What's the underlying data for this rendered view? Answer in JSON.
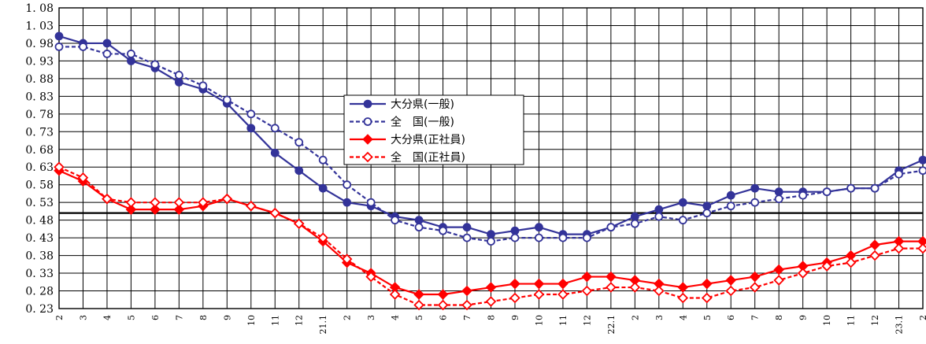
{
  "chart_data": {
    "type": "line",
    "categories": [
      "2",
      "3",
      "4",
      "5",
      "6",
      "7",
      "8",
      "9",
      "10",
      "11",
      "12",
      "21.1",
      "2",
      "3",
      "4",
      "5",
      "6",
      "7",
      "8",
      "9",
      "10",
      "11",
      "12",
      "22.1",
      "2",
      "3",
      "4",
      "5",
      "6",
      "7",
      "8",
      "9",
      "10",
      "11",
      "12",
      "23.1",
      "2"
    ],
    "series": [
      {
        "name": "大分県(一般)",
        "color": "#333399",
        "dashed": false,
        "marker": "filled-circle",
        "values": [
          1.0,
          0.98,
          0.98,
          0.93,
          0.91,
          0.87,
          0.85,
          0.81,
          0.74,
          0.67,
          0.62,
          0.57,
          0.53,
          0.52,
          0.49,
          0.48,
          0.46,
          0.46,
          0.44,
          0.45,
          0.46,
          0.44,
          0.44,
          0.46,
          0.49,
          0.51,
          0.53,
          0.52,
          0.55,
          0.57,
          0.56,
          0.56,
          0.56,
          0.57,
          0.57,
          0.62,
          0.65
        ]
      },
      {
        "name": "全　国(一般)",
        "color": "#333399",
        "dashed": true,
        "marker": "open-circle",
        "values": [
          0.97,
          0.97,
          0.95,
          0.95,
          0.92,
          0.89,
          0.86,
          0.82,
          0.78,
          0.74,
          0.7,
          0.65,
          0.58,
          0.53,
          0.48,
          0.46,
          0.45,
          0.43,
          0.42,
          0.43,
          0.43,
          0.43,
          0.43,
          0.46,
          0.47,
          0.49,
          0.48,
          0.5,
          0.52,
          0.53,
          0.54,
          0.55,
          0.56,
          0.57,
          0.57,
          0.61,
          0.62
        ]
      },
      {
        "name": "大分県(正社員)",
        "color": "#ff0000",
        "dashed": false,
        "marker": "filled-diamond",
        "values": [
          0.62,
          0.59,
          0.54,
          0.51,
          0.51,
          0.51,
          0.52,
          0.54,
          0.52,
          0.5,
          0.47,
          0.42,
          0.36,
          0.33,
          0.29,
          0.27,
          0.27,
          0.28,
          0.29,
          0.3,
          0.3,
          0.3,
          0.32,
          0.32,
          0.31,
          0.3,
          0.29,
          0.3,
          0.31,
          0.32,
          0.34,
          0.35,
          0.36,
          0.38,
          0.41,
          0.42,
          0.42
        ]
      },
      {
        "name": "全　国(正社員)",
        "color": "#ff0000",
        "dashed": true,
        "marker": "open-diamond",
        "values": [
          0.63,
          0.6,
          0.54,
          0.53,
          0.53,
          0.53,
          0.53,
          0.54,
          0.52,
          0.5,
          0.47,
          0.43,
          0.37,
          0.32,
          0.27,
          0.24,
          0.24,
          0.24,
          0.25,
          0.26,
          0.27,
          0.27,
          0.28,
          0.29,
          0.29,
          0.28,
          0.26,
          0.26,
          0.28,
          0.29,
          0.31,
          0.33,
          0.35,
          0.36,
          0.38,
          0.4,
          0.4
        ]
      }
    ],
    "y_ticks": [
      "0.23",
      "0.28",
      "0.33",
      "0.38",
      "0.43",
      "0.48",
      "0.53",
      "0.58",
      "0.63",
      "0.68",
      "0.73",
      "0.78",
      "0.83",
      "0.88",
      "0.93",
      "0.98",
      "1.03",
      "1.08"
    ],
    "ylim": [
      0.23,
      1.08
    ],
    "reference_line": 0.5,
    "title": "",
    "xlabel": "",
    "ylabel": "",
    "grid": true,
    "legend_position": "center-left"
  }
}
